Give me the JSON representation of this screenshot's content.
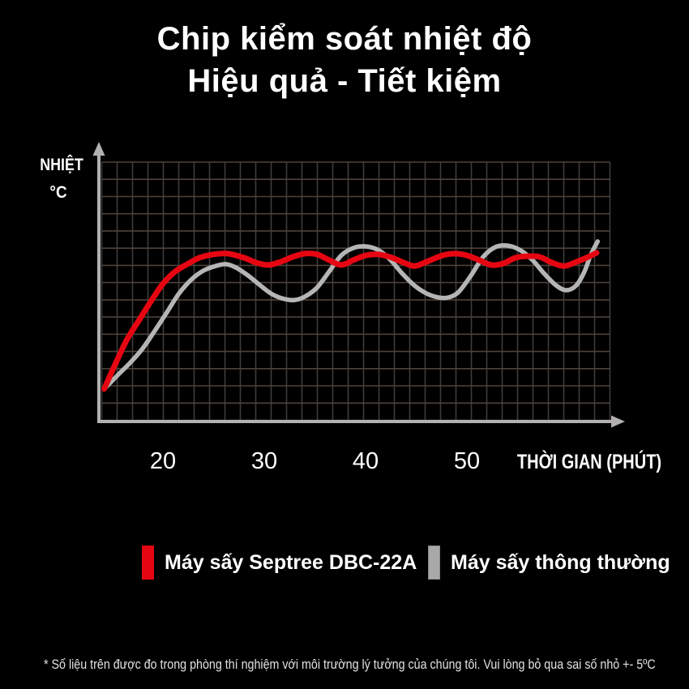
{
  "title": {
    "line1": "Chip kiểm soát nhiệt độ",
    "line2": "Hiệu quả - Tiết kiệm"
  },
  "chart_data": {
    "type": "line",
    "title": "Chip kiểm soát nhiệt độ - Hiệu quả - Tiết kiệm",
    "xlabel": "THỜI GIAN (PHÚT)",
    "ylabel": "NHIỆT °C",
    "ylabel_line1": "NHIỆT",
    "ylabel_line2": "°C",
    "x_unit": "minutes",
    "x_ticks": [
      20,
      30,
      40,
      50
    ],
    "x_tick_labels": [
      "20",
      "30",
      "40",
      "50"
    ],
    "x_range_shown": [
      14,
      64
    ],
    "y_axis_note": "y axis has no numeric labels; point y-values below are relative temperature level in % of plot height (0 = x-axis, 100 = top)",
    "grid": true,
    "legend_position": "bottom",
    "series": [
      {
        "name": "Máy sấy thông thường",
        "color": "#b5b5b5",
        "stroke_width": 5.5,
        "points": [
          [
            14.2,
            12.0
          ],
          [
            15.6,
            17.6
          ],
          [
            16.8,
            22.3
          ],
          [
            18.0,
            27.7
          ],
          [
            19.2,
            34.6
          ],
          [
            20.4,
            41.8
          ],
          [
            21.6,
            49.1
          ],
          [
            22.8,
            54.4
          ],
          [
            24.0,
            57.9
          ],
          [
            25.2,
            59.7
          ],
          [
            26.2,
            60.4
          ],
          [
            27.2,
            59.1
          ],
          [
            28.4,
            56.0
          ],
          [
            29.6,
            52.2
          ],
          [
            30.8,
            48.7
          ],
          [
            32.0,
            46.9
          ],
          [
            33.0,
            46.5
          ],
          [
            34.0,
            47.8
          ],
          [
            35.2,
            51.3
          ],
          [
            36.4,
            57.5
          ],
          [
            37.6,
            63.8
          ],
          [
            38.8,
            66.7
          ],
          [
            40.0,
            67.3
          ],
          [
            41.2,
            66.0
          ],
          [
            42.4,
            62.3
          ],
          [
            43.6,
            56.9
          ],
          [
            44.8,
            52.2
          ],
          [
            46.0,
            49.1
          ],
          [
            47.2,
            47.5
          ],
          [
            48.2,
            47.5
          ],
          [
            49.2,
            49.7
          ],
          [
            50.4,
            56.0
          ],
          [
            51.6,
            63.2
          ],
          [
            52.8,
            67.0
          ],
          [
            54.0,
            67.6
          ],
          [
            55.2,
            66.0
          ],
          [
            56.4,
            62.3
          ],
          [
            57.6,
            56.9
          ],
          [
            58.8,
            52.2
          ],
          [
            59.8,
            50.3
          ],
          [
            60.8,
            52.2
          ],
          [
            61.6,
            57.5
          ],
          [
            62.2,
            63.8
          ],
          [
            62.9,
            69.2
          ]
        ]
      },
      {
        "name": "Máy sấy Septree DBC-22A",
        "color": "#e60612",
        "stroke_width": 7,
        "points": [
          [
            14.2,
            12.0
          ],
          [
            15.2,
            20.8
          ],
          [
            16.4,
            30.8
          ],
          [
            17.6,
            38.4
          ],
          [
            18.8,
            45.9
          ],
          [
            20.0,
            52.8
          ],
          [
            21.2,
            57.5
          ],
          [
            22.4,
            60.4
          ],
          [
            23.6,
            62.9
          ],
          [
            25.0,
            64.2
          ],
          [
            26.4,
            64.5
          ],
          [
            28.0,
            62.9
          ],
          [
            29.2,
            61.0
          ],
          [
            30.4,
            60.1
          ],
          [
            31.6,
            61.3
          ],
          [
            32.8,
            63.2
          ],
          [
            34.0,
            64.5
          ],
          [
            35.2,
            64.2
          ],
          [
            36.4,
            62.0
          ],
          [
            37.6,
            60.1
          ],
          [
            38.8,
            62.0
          ],
          [
            40.0,
            63.8
          ],
          [
            41.2,
            64.2
          ],
          [
            42.4,
            63.2
          ],
          [
            43.6,
            61.3
          ],
          [
            44.8,
            59.7
          ],
          [
            46.0,
            61.3
          ],
          [
            47.6,
            63.8
          ],
          [
            48.8,
            64.5
          ],
          [
            50.0,
            63.8
          ],
          [
            51.2,
            62.0
          ],
          [
            52.4,
            60.1
          ],
          [
            53.6,
            60.7
          ],
          [
            54.8,
            62.9
          ],
          [
            56.0,
            63.5
          ],
          [
            57.2,
            63.2
          ],
          [
            58.4,
            61.0
          ],
          [
            59.6,
            59.7
          ],
          [
            60.8,
            61.3
          ],
          [
            61.8,
            62.9
          ],
          [
            62.8,
            64.8
          ]
        ]
      }
    ]
  },
  "legend": {
    "items": [
      {
        "label": "Máy sấy Septree DBC-22A",
        "color": "#e60612"
      },
      {
        "label": "Máy sấy thông thường",
        "color": "#a9a9a9"
      }
    ]
  },
  "footnote": "* Số liệu trên được đo trong phòng thí nghiệm với môi trường lý tưởng của chúng tôi. Vui lòng bỏ qua sai số nhỏ +- 5ºC"
}
